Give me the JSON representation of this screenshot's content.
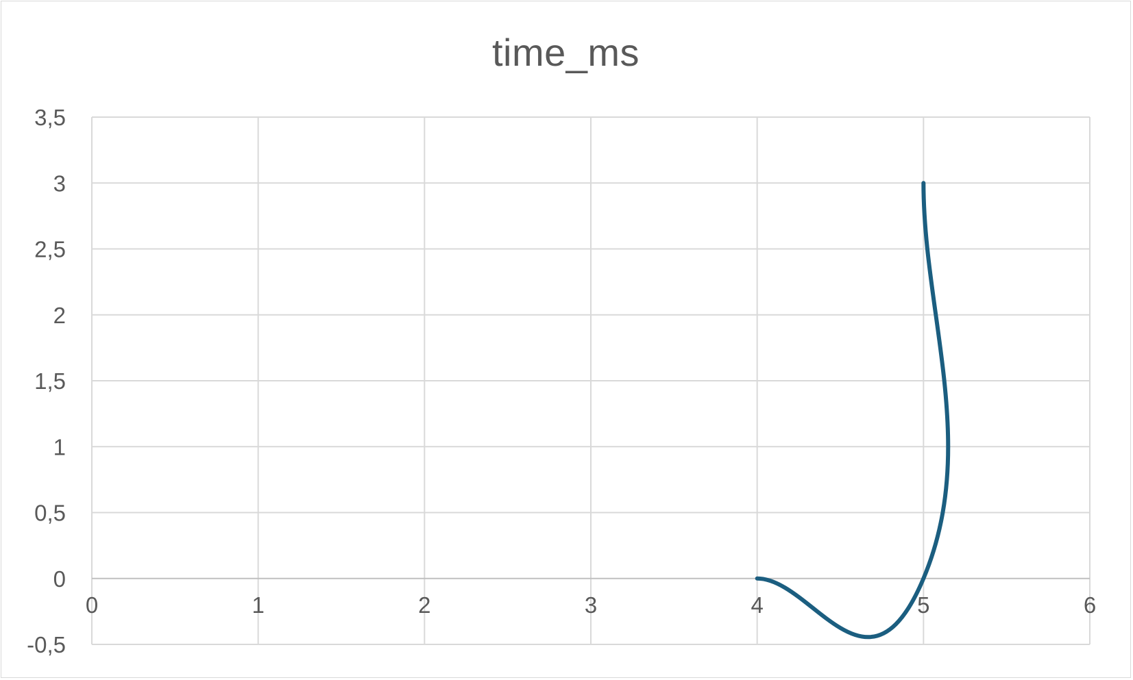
{
  "chart_data": {
    "type": "scatter",
    "title": "time_ms",
    "xlabel": "",
    "ylabel": "",
    "xlim": [
      0,
      6
    ],
    "ylim": [
      -0.5,
      3.5
    ],
    "x_ticks": [
      "0",
      "1",
      "2",
      "3",
      "4",
      "5",
      "6"
    ],
    "y_ticks": [
      "-0,5",
      "0",
      "0,5",
      "1",
      "1,5",
      "2",
      "2,5",
      "3",
      "3,5"
    ],
    "grid": true,
    "legend": "none",
    "line_style": "smooth",
    "series": [
      {
        "color": "#1b5e80",
        "points": [
          {
            "x": 4,
            "y": 0
          },
          {
            "x": 5,
            "y": 0
          },
          {
            "x": 5,
            "y": 3
          }
        ]
      }
    ]
  }
}
